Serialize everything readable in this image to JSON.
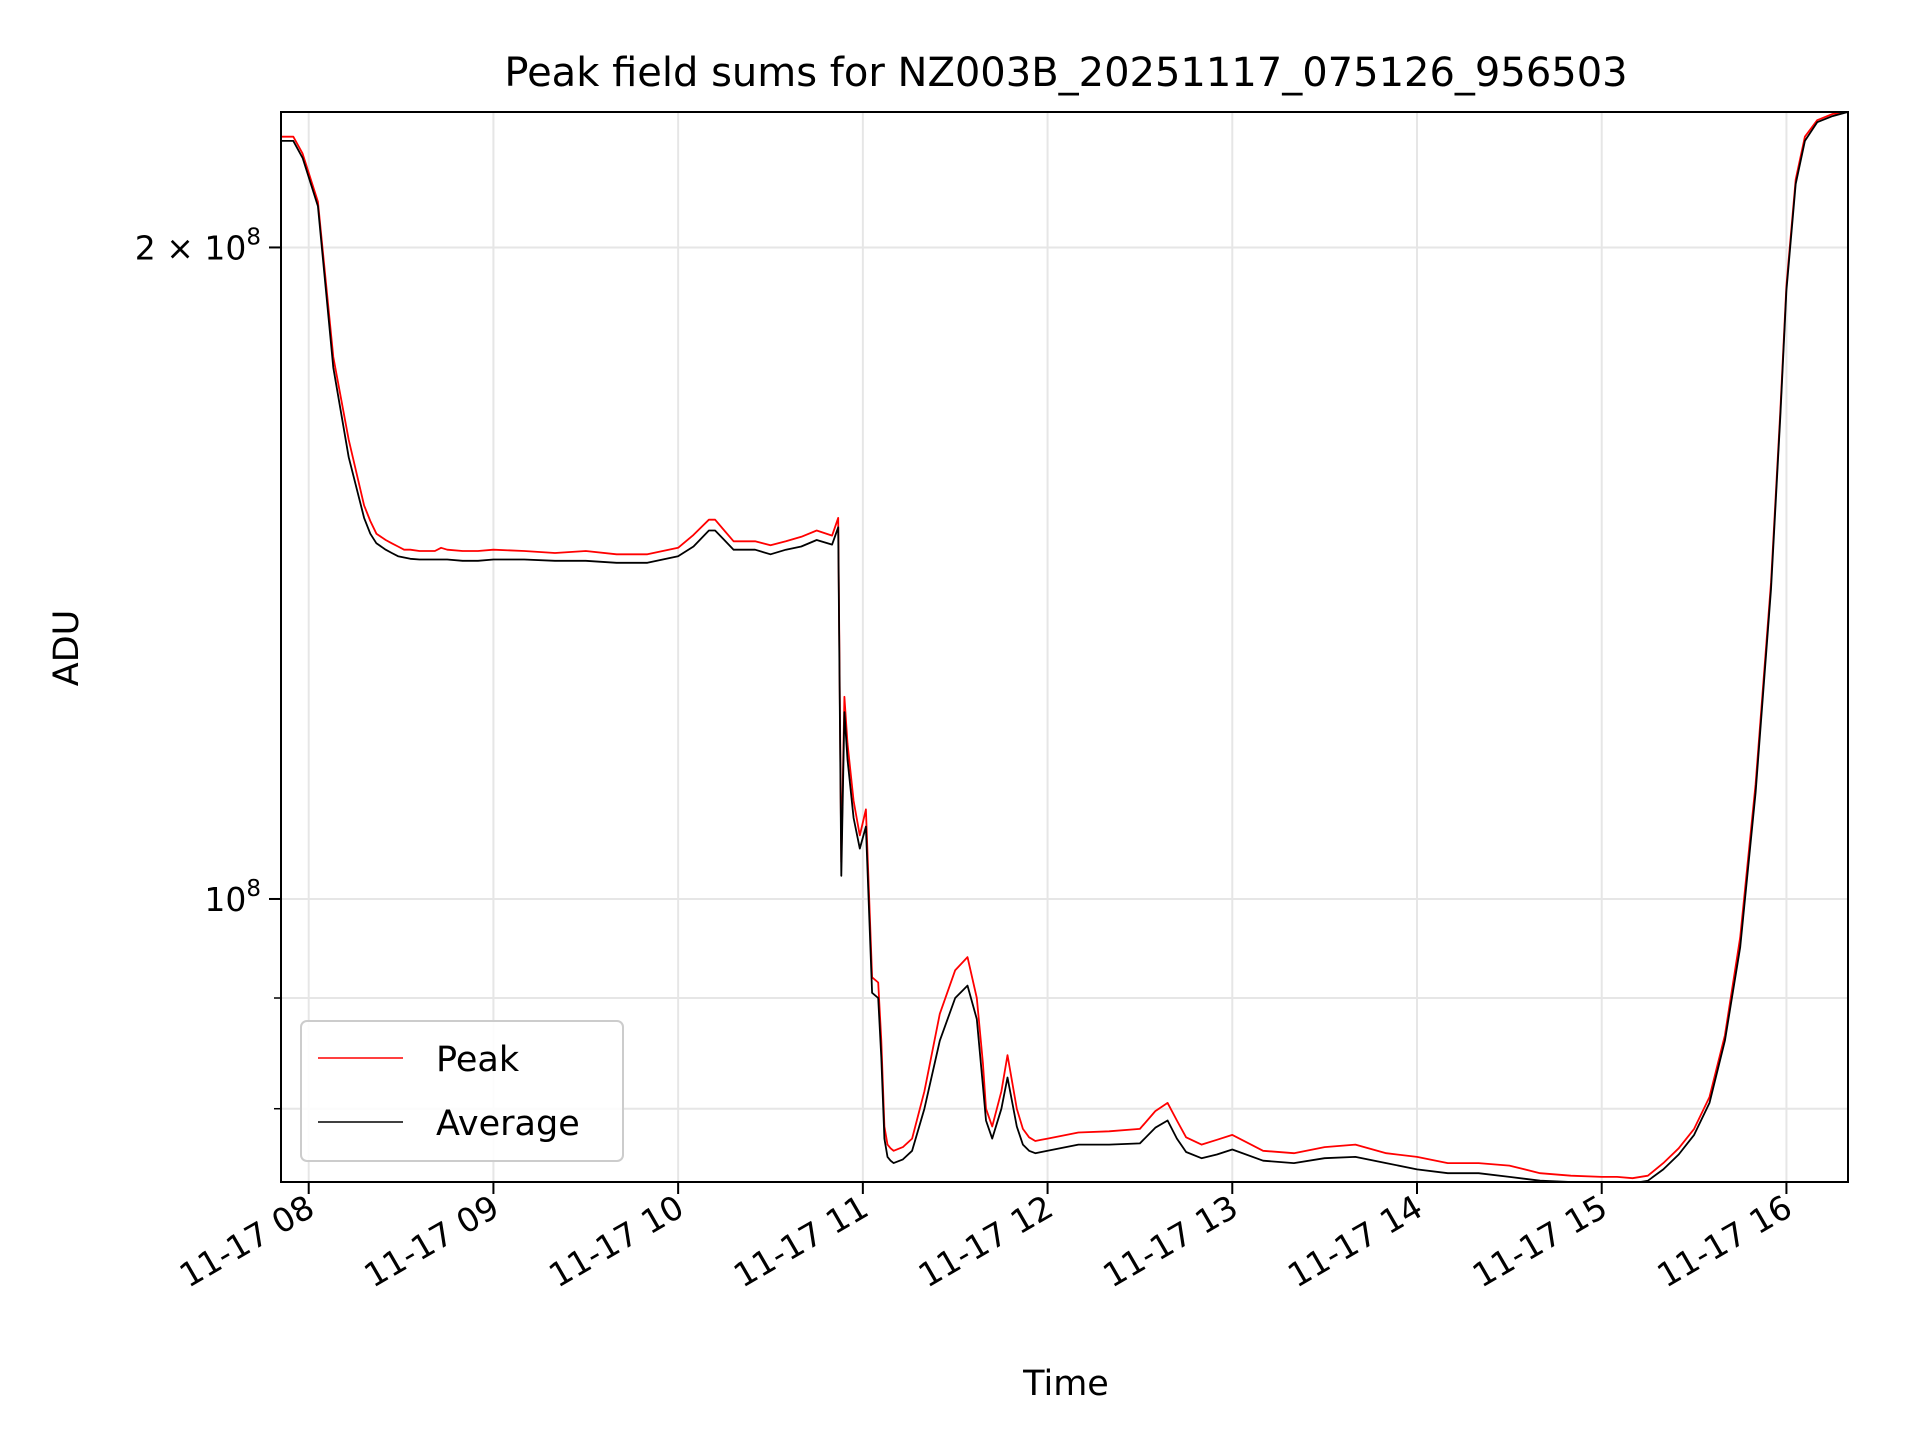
{
  "chart_data": {
    "type": "line",
    "title": "Peak field sums for NZ003B_20251117_075126_956503",
    "xlabel": "Time",
    "ylabel": "ADU",
    "x_axis": {
      "type": "datetime",
      "range": [
        "2025-11-17 07:51",
        "2025-11-17 16:20"
      ],
      "ticks": [
        "11-17 08",
        "11-17 09",
        "11-17 10",
        "11-17 11",
        "11-17 12",
        "11-17 13",
        "11-17 14",
        "11-17 15",
        "11-17 16"
      ]
    },
    "y_axis": {
      "scale": "log",
      "range": [
        74000000,
        231000000
      ],
      "major_ticks": [
        {
          "value": 100000000,
          "mantissa": "",
          "exponent": "8"
        },
        {
          "value": 200000000,
          "mantissa": "2 × ",
          "exponent": "8"
        }
      ],
      "minor_ticks": [
        80000000,
        90000000
      ]
    },
    "grid": true,
    "legend": {
      "position": "lower-left"
    },
    "series": [
      {
        "name": "Peak",
        "color": "#ff0000",
        "x": [
          "07:51",
          "07:55",
          "07:58",
          "08:03",
          "08:08",
          "08:13",
          "08:18",
          "08:20",
          "08:22",
          "08:25",
          "08:27",
          "08:29",
          "08:31",
          "08:33",
          "08:36",
          "08:41",
          "08:43",
          "08:45",
          "08:50",
          "08:55",
          "09:00",
          "09:10",
          "09:20",
          "09:30",
          "09:40",
          "09:50",
          "10:00",
          "10:05",
          "10:10",
          "10:12",
          "10:15",
          "10:18",
          "10:25",
          "10:30",
          "10:35",
          "10:40",
          "10:45",
          "10:50",
          "10:52",
          "10:53",
          "10:54",
          "10:55",
          "10:57",
          "10:59",
          "11:01",
          "11:03",
          "11:05",
          "11:06",
          "11:07",
          "11:08",
          "11:09",
          "11:10",
          "11:13",
          "11:16",
          "11:20",
          "11:25",
          "11:30",
          "11:34",
          "11:37",
          "11:39",
          "11:40",
          "11:42",
          "11:45",
          "11:47",
          "11:50",
          "11:52",
          "11:54",
          "11:56",
          "11:58",
          "12:00",
          "12:10",
          "12:20",
          "12:30",
          "12:35",
          "12:39",
          "12:42",
          "12:45",
          "12:50",
          "12:55",
          "13:00",
          "13:10",
          "13:20",
          "13:30",
          "13:40",
          "13:50",
          "14:00",
          "14:10",
          "14:20",
          "14:30",
          "14:40",
          "14:50",
          "15:00",
          "15:05",
          "15:10",
          "15:15",
          "15:20",
          "15:25",
          "15:30",
          "15:35",
          "15:40",
          "15:45",
          "15:50",
          "15:55",
          "15:58",
          "16:00",
          "16:03",
          "16:06",
          "16:10",
          "16:15",
          "16:20"
        ],
        "y": [
          225000000,
          225000000,
          221000000,
          210000000,
          178000000,
          163000000,
          152000000,
          149500000,
          147500000,
          146500000,
          146000000,
          145500000,
          145000000,
          145000000,
          144800000,
          144800000,
          145300000,
          145000000,
          144800000,
          144800000,
          145000000,
          144800000,
          144500000,
          144800000,
          144300000,
          144300000,
          145300000,
          147300000,
          149700000,
          149700000,
          148000000,
          146300000,
          146300000,
          145700000,
          146300000,
          147000000,
          148000000,
          147200000,
          150000000,
          104000000,
          124000000,
          118000000,
          111000000,
          107000000,
          110000000,
          92000000,
          91500000,
          86000000,
          78500000,
          77000000,
          76700000,
          76500000,
          76800000,
          77500000,
          81500000,
          88500000,
          92700000,
          94000000,
          90000000,
          84000000,
          80000000,
          78500000,
          81500000,
          84700000,
          80000000,
          78300000,
          77600000,
          77300000,
          77400000,
          77500000,
          78000000,
          78100000,
          78300000,
          79800000,
          80500000,
          79000000,
          77600000,
          77000000,
          77400000,
          77800000,
          76500000,
          76300000,
          76800000,
          77000000,
          76300000,
          76000000,
          75500000,
          75500000,
          75300000,
          74700000,
          74500000,
          74400000,
          74400000,
          74300000,
          74500000,
          75500000,
          76700000,
          78300000,
          81000000,
          86500000,
          96000000,
          113000000,
          140000000,
          168000000,
          192000000,
          215000000,
          225000000,
          229000000,
          230500000,
          231000000
        ]
      },
      {
        "name": "Average",
        "color": "#000000",
        "x": [
          "07:51",
          "07:55",
          "07:58",
          "08:03",
          "08:08",
          "08:13",
          "08:18",
          "08:20",
          "08:22",
          "08:25",
          "08:27",
          "08:29",
          "08:31",
          "08:33",
          "08:36",
          "08:41",
          "08:43",
          "08:45",
          "08:50",
          "08:55",
          "09:00",
          "09:10",
          "09:20",
          "09:30",
          "09:40",
          "09:50",
          "10:00",
          "10:05",
          "10:10",
          "10:12",
          "10:15",
          "10:18",
          "10:25",
          "10:30",
          "10:35",
          "10:40",
          "10:45",
          "10:50",
          "10:52",
          "10:53",
          "10:54",
          "10:55",
          "10:57",
          "10:59",
          "11:01",
          "11:03",
          "11:05",
          "11:06",
          "11:07",
          "11:08",
          "11:09",
          "11:10",
          "11:13",
          "11:16",
          "11:20",
          "11:25",
          "11:30",
          "11:34",
          "11:37",
          "11:39",
          "11:40",
          "11:42",
          "11:45",
          "11:47",
          "11:50",
          "11:52",
          "11:54",
          "11:56",
          "11:58",
          "12:00",
          "12:10",
          "12:20",
          "12:30",
          "12:35",
          "12:39",
          "12:42",
          "12:45",
          "12:50",
          "12:55",
          "13:00",
          "13:10",
          "13:20",
          "13:30",
          "13:40",
          "13:50",
          "14:00",
          "14:10",
          "14:20",
          "14:30",
          "14:40",
          "14:50",
          "15:00",
          "15:05",
          "15:10",
          "15:15",
          "15:20",
          "15:25",
          "15:30",
          "15:35",
          "15:40",
          "15:45",
          "15:50",
          "15:55",
          "15:58",
          "16:00",
          "16:03",
          "16:06",
          "16:10",
          "16:15",
          "16:20"
        ],
        "y": [
          224000000,
          224000000,
          220000000,
          209000000,
          176000000,
          160000000,
          150000000,
          147500000,
          146000000,
          145000000,
          144500000,
          144000000,
          143800000,
          143600000,
          143500000,
          143500000,
          143500000,
          143500000,
          143300000,
          143300000,
          143500000,
          143500000,
          143300000,
          143300000,
          143000000,
          143000000,
          144000000,
          145500000,
          148000000,
          148000000,
          146500000,
          145000000,
          145000000,
          144300000,
          145000000,
          145500000,
          146500000,
          145800000,
          148500000,
          102500000,
          122000000,
          116000000,
          109000000,
          105500000,
          108000000,
          90500000,
          90000000,
          84500000,
          77500000,
          76000000,
          75700000,
          75500000,
          75800000,
          76500000,
          80000000,
          86000000,
          90000000,
          91200000,
          88000000,
          82000000,
          79000000,
          77500000,
          80000000,
          82700000,
          78500000,
          77000000,
          76500000,
          76300000,
          76400000,
          76500000,
          77000000,
          77000000,
          77100000,
          78400000,
          79000000,
          77500000,
          76400000,
          75900000,
          76200000,
          76600000,
          75700000,
          75500000,
          75900000,
          76000000,
          75500000,
          75000000,
          74700000,
          74700000,
          74400000,
          74100000,
          74000000,
          73900000,
          73900000,
          73900000,
          74100000,
          75000000,
          76200000,
          77800000,
          80500000,
          86000000,
          95000000,
          112000000,
          139000000,
          167000000,
          191000000,
          214000000,
          224000000,
          228500000,
          230000000,
          231000000
        ]
      }
    ]
  }
}
